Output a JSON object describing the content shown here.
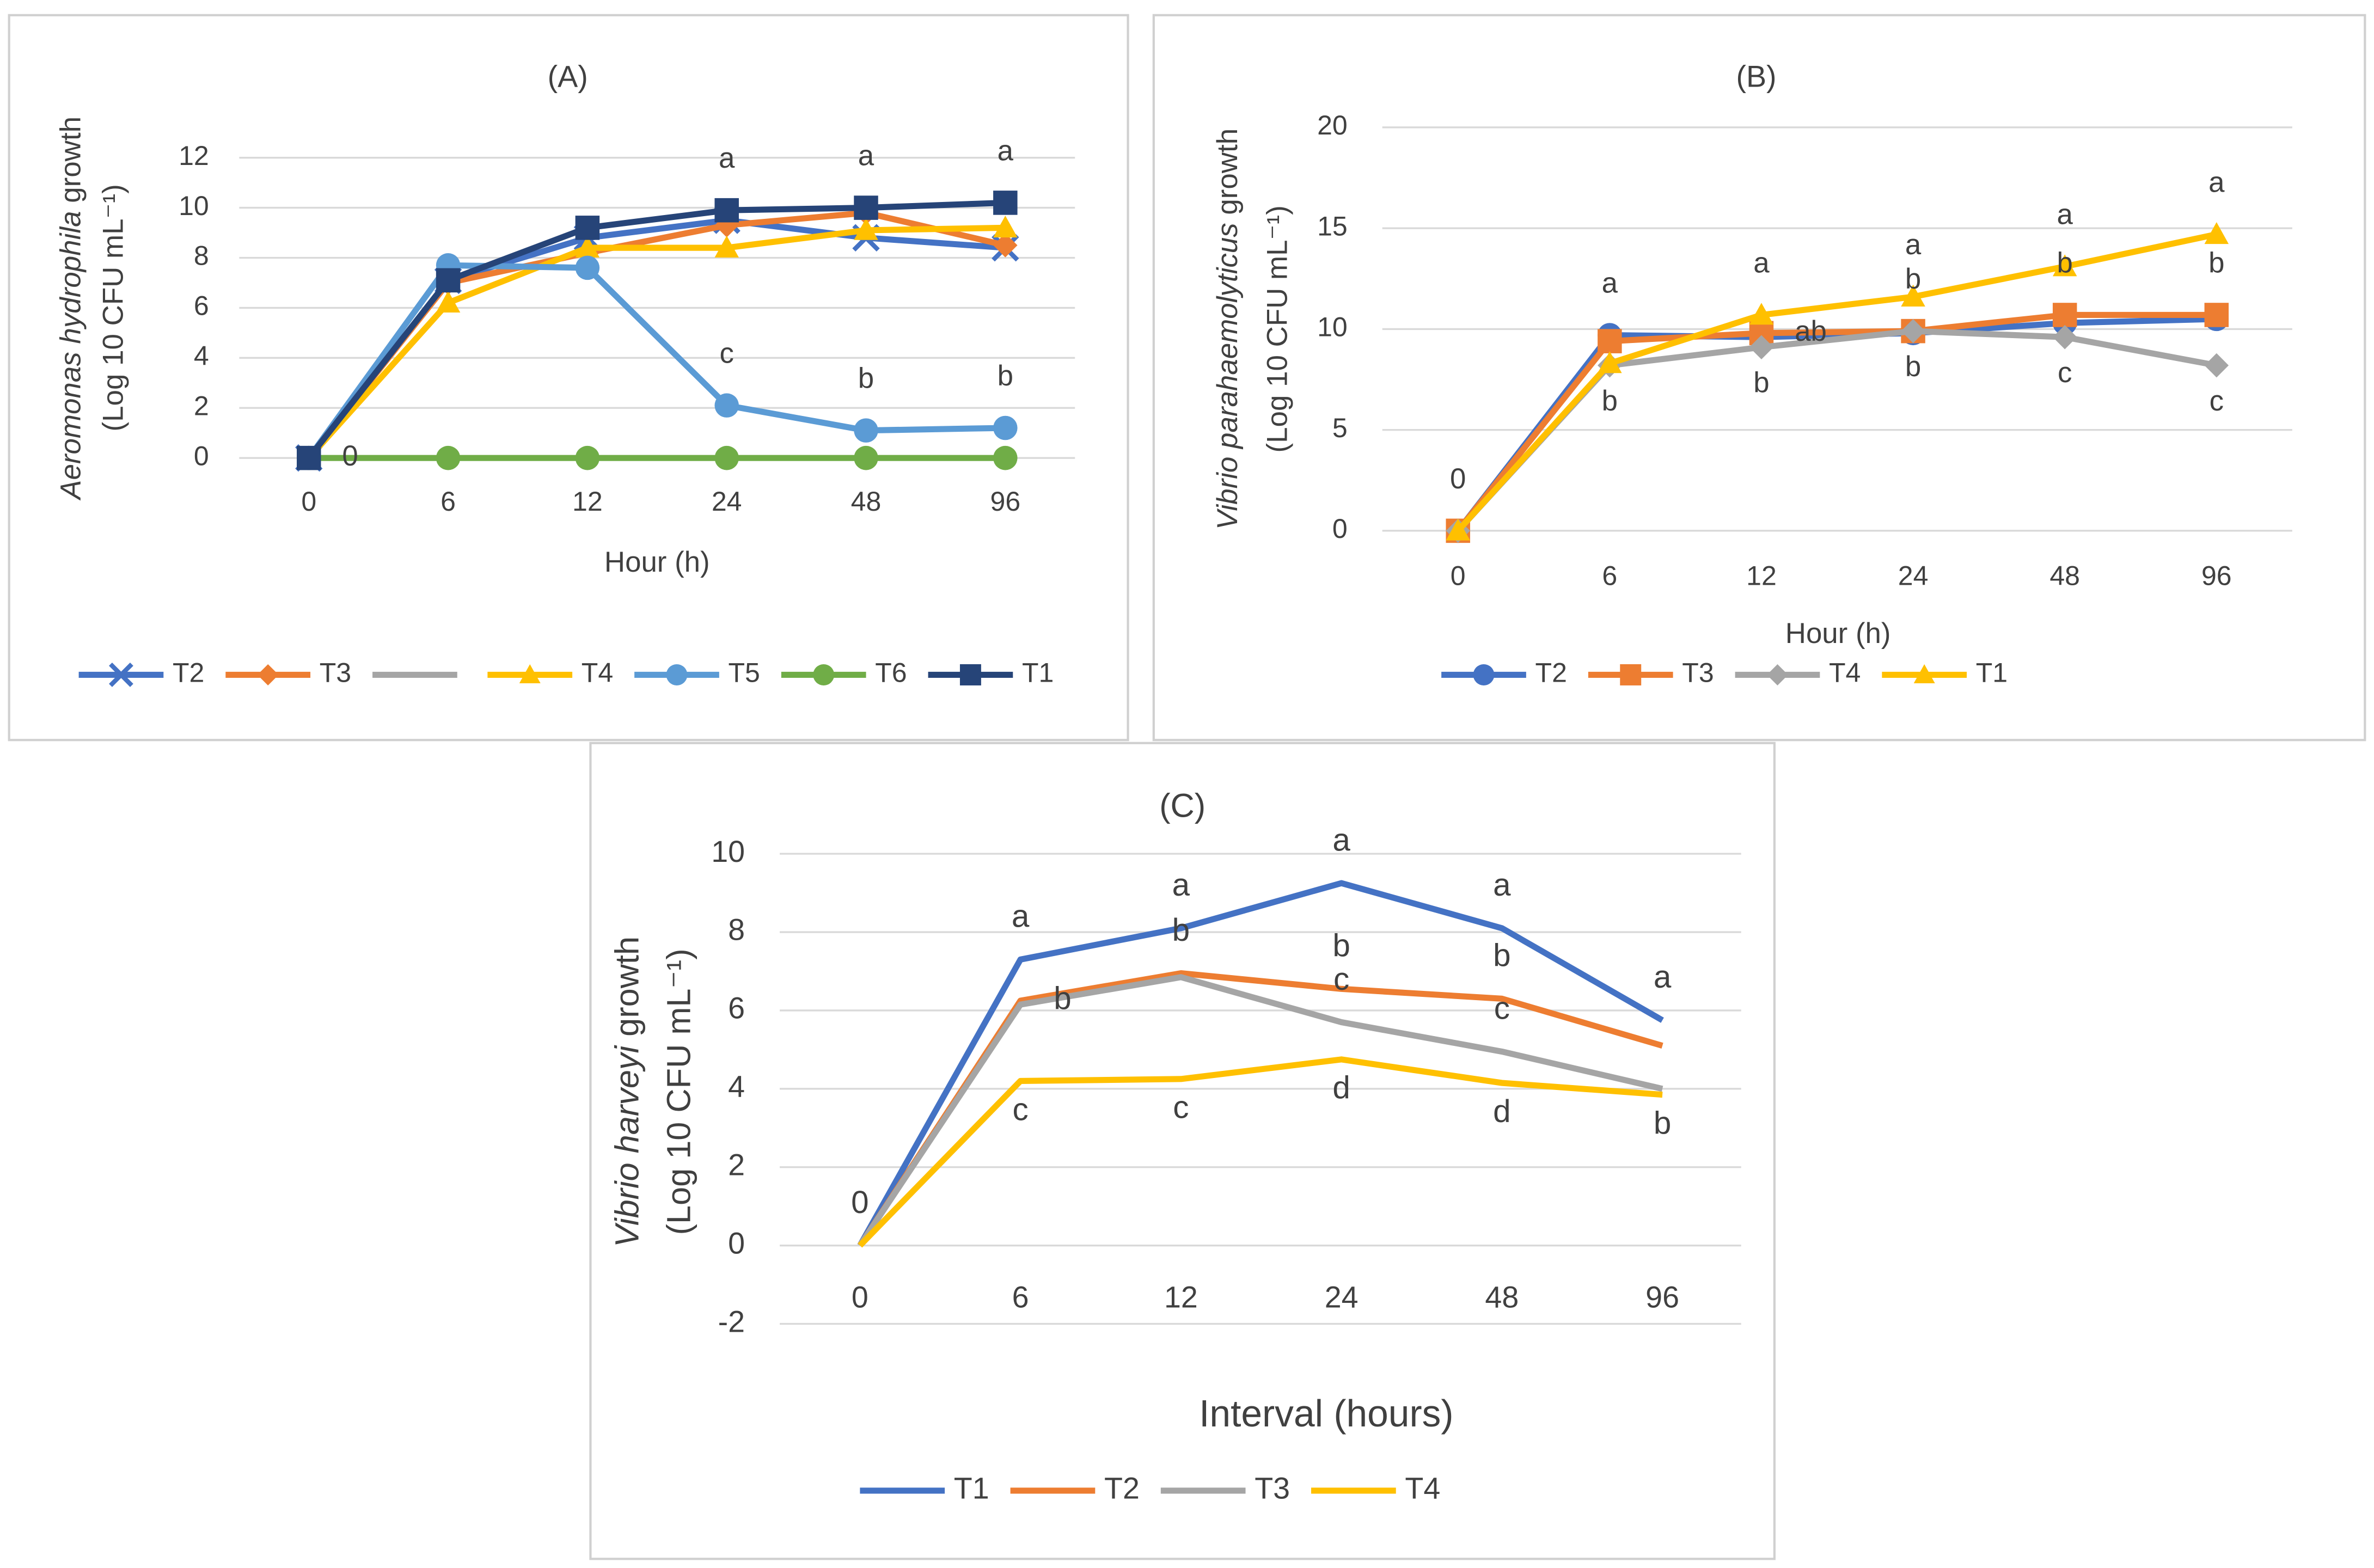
{
  "chart_data": [
    {
      "type": "line",
      "title": "(A)",
      "ylabel": [
        {
          "italic": "Aeromonas hydrophila",
          "normal": " growth"
        },
        "(Log 10 CFU mL⁻¹)"
      ],
      "xlabel": "Hour (h)",
      "categories": [
        "0",
        "6",
        "12",
        "24",
        "48",
        "96"
      ],
      "ylim": [
        0,
        12
      ],
      "yticks": [
        0,
        2,
        4,
        6,
        8,
        10,
        12
      ],
      "grid": true,
      "legend": "bottom",
      "series": [
        {
          "name": "T2",
          "color": "#4472c4",
          "marker": "x",
          "values": [
            0,
            7.1,
            8.8,
            9.5,
            8.8,
            8.4
          ]
        },
        {
          "name": "T3",
          "color": "#ed7d31",
          "marker": "diamond",
          "values": [
            0,
            7.0,
            8.2,
            9.3,
            9.8,
            8.5
          ]
        },
        {
          "name": null,
          "color": "#a5a5a5",
          "marker": "none",
          "values": [
            null,
            null,
            null,
            null,
            null,
            null
          ]
        },
        {
          "name": "T4",
          "color": "#ffc000",
          "marker": "triangle",
          "values": [
            0,
            6.2,
            8.4,
            8.4,
            9.1,
            9.2
          ]
        },
        {
          "name": "T5",
          "color": "#5b9bd5",
          "marker": "circle",
          "values": [
            0,
            7.7,
            7.6,
            2.1,
            1.1,
            1.2
          ],
          "labels_above": [
            null,
            null,
            null,
            "c",
            "b",
            "b"
          ]
        },
        {
          "name": "T6",
          "color": "#70ad47",
          "marker": "circle",
          "values": [
            0,
            0,
            0,
            0,
            0,
            0
          ],
          "labels_right": [
            "0",
            null,
            null,
            null,
            null,
            null
          ]
        },
        {
          "name": "T1",
          "color": "#264478",
          "marker": "square",
          "values": [
            0,
            7.1,
            9.2,
            9.9,
            10.0,
            10.2
          ],
          "labels_above": [
            null,
            null,
            null,
            "a",
            "a",
            "a"
          ]
        }
      ]
    },
    {
      "type": "line",
      "title": "(B)",
      "ylabel": [
        {
          "italic": "Vibrio parahaemolyticus",
          "normal": " growth"
        },
        "(Log 10 CFU mL⁻¹)"
      ],
      "xlabel": "Hour (h)",
      "categories": [
        "0",
        "6",
        "12",
        "24",
        "48",
        "96"
      ],
      "ylim": [
        0,
        20
      ],
      "yticks": [
        0,
        5,
        10,
        15,
        20
      ],
      "grid": true,
      "legend": "bottom",
      "series": [
        {
          "name": "T2",
          "color": "#4472c4",
          "marker": "circle",
          "values": [
            0,
            9.7,
            9.6,
            9.8,
            10.3,
            10.5
          ],
          "labels_above": [
            null,
            "a",
            null,
            null,
            null,
            null
          ]
        },
        {
          "name": "T3",
          "color": "#ed7d31",
          "marker": "square",
          "values": [
            0,
            9.4,
            9.8,
            9.9,
            10.7,
            10.7
          ],
          "labels_above": [
            null,
            null,
            null,
            "b",
            "b",
            "b"
          ],
          "labels_right": [
            null,
            null,
            "ab",
            null,
            null,
            null
          ]
        },
        {
          "name": "T4",
          "color": "#a5a5a5",
          "marker": "diamond",
          "values": [
            0,
            8.2,
            9.1,
            9.9,
            9.6,
            8.2
          ],
          "labels_below": [
            null,
            "b",
            "b",
            "b",
            "c",
            "c"
          ]
        },
        {
          "name": "T1",
          "color": "#ffc000",
          "marker": "triangle",
          "values": [
            0,
            8.3,
            10.7,
            11.6,
            13.1,
            14.7
          ],
          "labels_above": [
            "0",
            null,
            "a",
            "a",
            "a",
            "a"
          ]
        }
      ]
    },
    {
      "type": "line",
      "title": "(C)",
      "ylabel": [
        {
          "italic": "Vibrio harveyi",
          "normal": " growth"
        },
        "(Log 10 CFU mL⁻¹)"
      ],
      "xlabel": "Interval (hours)",
      "categories": [
        "0",
        "6",
        "12",
        "24",
        "48",
        "96"
      ],
      "ylim": [
        -2,
        10
      ],
      "yticks": [
        -2,
        0,
        2,
        4,
        6,
        8,
        10
      ],
      "grid": true,
      "legend": "bottom",
      "series": [
        {
          "name": "T1",
          "color": "#4472c4",
          "marker": "none",
          "values": [
            0,
            7.3,
            8.1,
            9.25,
            8.1,
            5.75
          ],
          "labels_above": [
            "0",
            "a",
            "a",
            "a",
            "a",
            "a"
          ]
        },
        {
          "name": "T2",
          "color": "#ed7d31",
          "marker": "none",
          "values": [
            0,
            6.25,
            6.95,
            6.55,
            6.3,
            5.1
          ],
          "labels_above": [
            null,
            null,
            "b",
            "b",
            "b",
            null
          ],
          "labels_right": [
            null,
            "b",
            null,
            null,
            null,
            null
          ]
        },
        {
          "name": "T3",
          "color": "#a5a5a5",
          "marker": "none",
          "values": [
            0,
            6.15,
            6.85,
            5.7,
            4.95,
            4.0
          ],
          "labels_above": [
            null,
            null,
            null,
            "c",
            "c",
            null
          ]
        },
        {
          "name": "T4",
          "color": "#ffc000",
          "marker": "none",
          "values": [
            0,
            4.2,
            4.25,
            4.75,
            4.15,
            3.85
          ],
          "labels_below": [
            null,
            "c",
            "c",
            "d",
            "d",
            "b"
          ]
        }
      ]
    }
  ]
}
